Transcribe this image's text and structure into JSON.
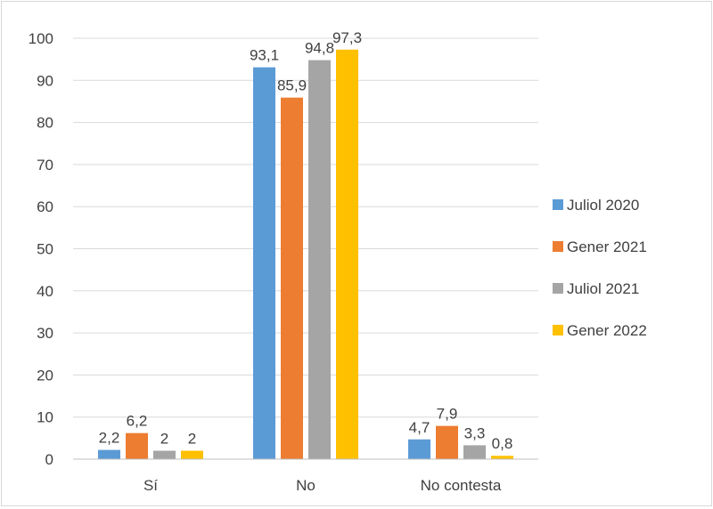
{
  "chart_data": {
    "type": "bar",
    "categories": [
      "Sí",
      "No",
      "No contesta"
    ],
    "series": [
      {
        "name": "Juliol 2020",
        "color": "#5B9BD5",
        "values": [
          2.2,
          93.1,
          4.7
        ],
        "labels": [
          "2,2",
          "93,1",
          "4,7"
        ]
      },
      {
        "name": "Gener 2021",
        "color": "#ED7D31",
        "values": [
          6.2,
          85.9,
          7.9
        ],
        "labels": [
          "6,2",
          "85,9",
          "7,9"
        ]
      },
      {
        "name": "Juliol 2021",
        "color": "#A5A5A5",
        "values": [
          2,
          94.8,
          3.3
        ],
        "labels": [
          "2",
          "94,8",
          "3,3"
        ]
      },
      {
        "name": "Gener 2022",
        "color": "#FFC000",
        "values": [
          2,
          97.3,
          0.8
        ],
        "labels": [
          "2",
          "97,3",
          "0,8"
        ]
      }
    ],
    "ylim": [
      0,
      100
    ],
    "yticks": [
      "0",
      "10",
      "20",
      "30",
      "40",
      "50",
      "60",
      "70",
      "80",
      "90",
      "100"
    ],
    "grid": true,
    "legend": "right"
  }
}
